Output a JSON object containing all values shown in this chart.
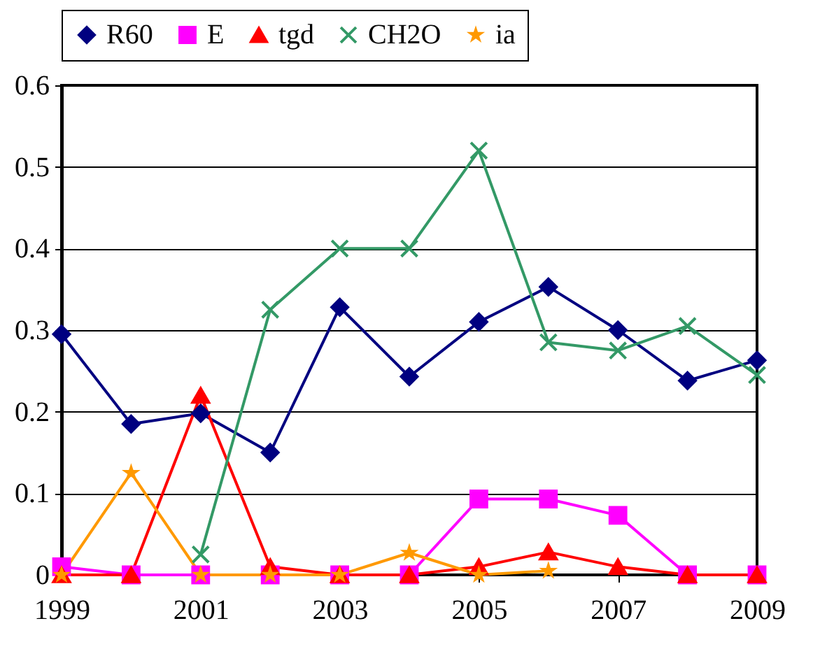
{
  "chart_data": {
    "type": "line",
    "x": [
      1999,
      2000,
      2001,
      2002,
      2003,
      2004,
      2005,
      2006,
      2007,
      2008,
      2009
    ],
    "xlim": [
      1999,
      2009
    ],
    "xticks": [
      1999,
      2001,
      2003,
      2005,
      2007,
      2009
    ],
    "ylim": [
      0,
      0.6
    ],
    "yticks": [
      0,
      0.1,
      0.2,
      0.3,
      0.4,
      0.5,
      0.6
    ],
    "grid": "y",
    "legend": "top",
    "series": [
      {
        "name": "R60",
        "color": "#000080",
        "marker": "diamond",
        "values": [
          0.295,
          0.185,
          0.198,
          0.15,
          0.328,
          0.243,
          0.31,
          0.353,
          0.3,
          0.238,
          0.263
        ]
      },
      {
        "name": "E",
        "color": "#ff00ff",
        "marker": "square",
        "values": [
          0.01,
          0,
          0,
          0,
          0,
          0,
          0.093,
          0.093,
          0.073,
          0,
          0
        ]
      },
      {
        "name": "tgd",
        "color": "#ff0000",
        "marker": "triangle",
        "values": [
          0,
          0,
          0.22,
          0.01,
          0,
          0,
          0.01,
          0.028,
          0.01,
          0,
          0
        ]
      },
      {
        "name": "CH2O",
        "color": "#339966",
        "marker": "cross",
        "values": [
          null,
          null,
          0.025,
          0.325,
          0.4,
          0.4,
          0.52,
          0.285,
          0.275,
          0.305,
          0.245
        ]
      },
      {
        "name": "ia",
        "color": "#ff9900",
        "marker": "star",
        "values": [
          0,
          0.125,
          0,
          0,
          0,
          0.027,
          0,
          0.005,
          null,
          null,
          null
        ]
      }
    ]
  }
}
